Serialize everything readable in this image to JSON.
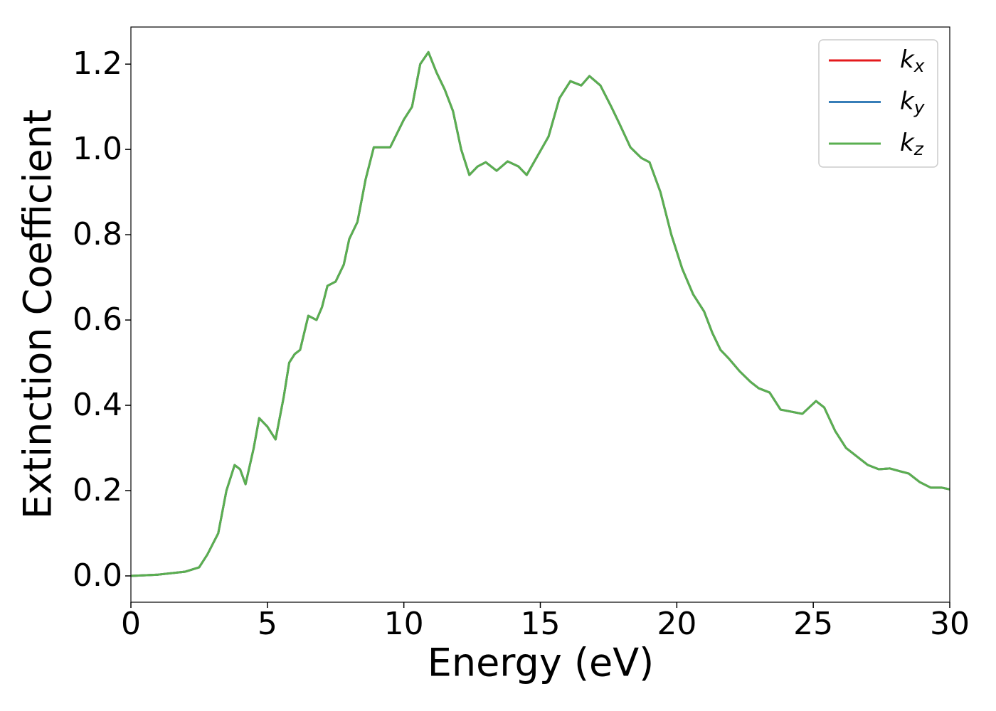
{
  "chart_data": {
    "type": "line",
    "xlabel": "Energy (eV)",
    "ylabel": "Extinction Coefficient",
    "x": [
      0,
      1,
      2,
      2.5,
      2.8,
      3.0,
      3.2,
      3.5,
      3.8,
      4.0,
      4.2,
      4.5,
      4.7,
      5.0,
      5.3,
      5.6,
      5.8,
      6.0,
      6.2,
      6.5,
      6.8,
      7.0,
      7.2,
      7.5,
      7.8,
      8.0,
      8.3,
      8.6,
      8.9,
      9.5,
      10.0,
      10.3,
      10.6,
      10.9,
      11.2,
      11.5,
      11.8,
      12.1,
      12.4,
      12.7,
      13.0,
      13.4,
      13.8,
      14.2,
      14.5,
      14.9,
      15.3,
      15.7,
      16.1,
      16.5,
      16.8,
      17.2,
      17.6,
      17.9,
      18.3,
      18.7,
      19.0,
      19.4,
      19.8,
      20.2,
      20.6,
      21.0,
      21.3,
      21.6,
      21.9,
      22.3,
      22.7,
      23.0,
      23.4,
      23.8,
      24.2,
      24.6,
      25.1,
      25.4,
      25.8,
      26.2,
      26.6,
      27.0,
      27.4,
      27.8,
      28.2,
      28.5,
      28.9,
      29.3,
      29.7,
      30.0
    ],
    "series": [
      {
        "name": "k_x",
        "color": "#e41a1c",
        "values": [
          0.0,
          0.003,
          0.01,
          0.02,
          0.05,
          0.075,
          0.1,
          0.2,
          0.26,
          0.25,
          0.215,
          0.3,
          0.37,
          0.35,
          0.32,
          0.42,
          0.5,
          0.52,
          0.53,
          0.61,
          0.6,
          0.63,
          0.68,
          0.69,
          0.73,
          0.79,
          0.83,
          0.93,
          1.005,
          1.005,
          1.07,
          1.1,
          1.2,
          1.228,
          1.18,
          1.14,
          1.09,
          1.0,
          0.94,
          0.96,
          0.97,
          0.95,
          0.972,
          0.96,
          0.94,
          0.985,
          1.03,
          1.12,
          1.16,
          1.15,
          1.172,
          1.15,
          1.1,
          1.06,
          1.005,
          0.98,
          0.97,
          0.9,
          0.8,
          0.72,
          0.66,
          0.62,
          0.57,
          0.53,
          0.51,
          0.48,
          0.455,
          0.44,
          0.43,
          0.39,
          0.385,
          0.38,
          0.41,
          0.395,
          0.34,
          0.3,
          0.28,
          0.26,
          0.25,
          0.252,
          0.245,
          0.24,
          0.22,
          0.207,
          0.207,
          0.203
        ]
      },
      {
        "name": "k_y",
        "color": "#377eb8",
        "values": [
          0.0,
          0.003,
          0.01,
          0.02,
          0.05,
          0.075,
          0.1,
          0.2,
          0.26,
          0.25,
          0.215,
          0.3,
          0.37,
          0.35,
          0.32,
          0.42,
          0.5,
          0.52,
          0.53,
          0.61,
          0.6,
          0.63,
          0.68,
          0.69,
          0.73,
          0.79,
          0.83,
          0.93,
          1.005,
          1.005,
          1.07,
          1.1,
          1.2,
          1.228,
          1.18,
          1.14,
          1.09,
          1.0,
          0.94,
          0.96,
          0.97,
          0.95,
          0.972,
          0.96,
          0.94,
          0.985,
          1.03,
          1.12,
          1.16,
          1.15,
          1.172,
          1.15,
          1.1,
          1.06,
          1.005,
          0.98,
          0.97,
          0.9,
          0.8,
          0.72,
          0.66,
          0.62,
          0.57,
          0.53,
          0.51,
          0.48,
          0.455,
          0.44,
          0.43,
          0.39,
          0.385,
          0.38,
          0.41,
          0.395,
          0.34,
          0.3,
          0.28,
          0.26,
          0.25,
          0.252,
          0.245,
          0.24,
          0.22,
          0.207,
          0.207,
          0.203
        ]
      },
      {
        "name": "k_z",
        "color": "#5aaf50",
        "values": [
          0.0,
          0.003,
          0.01,
          0.02,
          0.05,
          0.075,
          0.1,
          0.2,
          0.26,
          0.25,
          0.215,
          0.3,
          0.37,
          0.35,
          0.32,
          0.42,
          0.5,
          0.52,
          0.53,
          0.61,
          0.6,
          0.63,
          0.68,
          0.69,
          0.73,
          0.79,
          0.83,
          0.93,
          1.005,
          1.005,
          1.07,
          1.1,
          1.2,
          1.228,
          1.18,
          1.14,
          1.09,
          1.0,
          0.94,
          0.96,
          0.97,
          0.95,
          0.972,
          0.96,
          0.94,
          0.985,
          1.03,
          1.12,
          1.16,
          1.15,
          1.172,
          1.15,
          1.1,
          1.06,
          1.005,
          0.98,
          0.97,
          0.9,
          0.8,
          0.72,
          0.66,
          0.62,
          0.57,
          0.53,
          0.51,
          0.48,
          0.455,
          0.44,
          0.43,
          0.39,
          0.385,
          0.38,
          0.41,
          0.395,
          0.34,
          0.3,
          0.28,
          0.26,
          0.25,
          0.252,
          0.245,
          0.24,
          0.22,
          0.207,
          0.207,
          0.203
        ]
      }
    ],
    "xlim": [
      0,
      30
    ],
    "xticks": [
      0,
      5,
      10,
      15,
      20,
      25,
      30
    ],
    "ylim": [
      -0.0617,
      1.287
    ],
    "yticks": [
      {
        "value": 0,
        "label": "0.0"
      },
      0.2,
      0.4,
      0.6,
      0.8,
      {
        "value": 1,
        "label": "1.0"
      },
      1.2
    ],
    "grid": false,
    "legend": "upper right"
  }
}
